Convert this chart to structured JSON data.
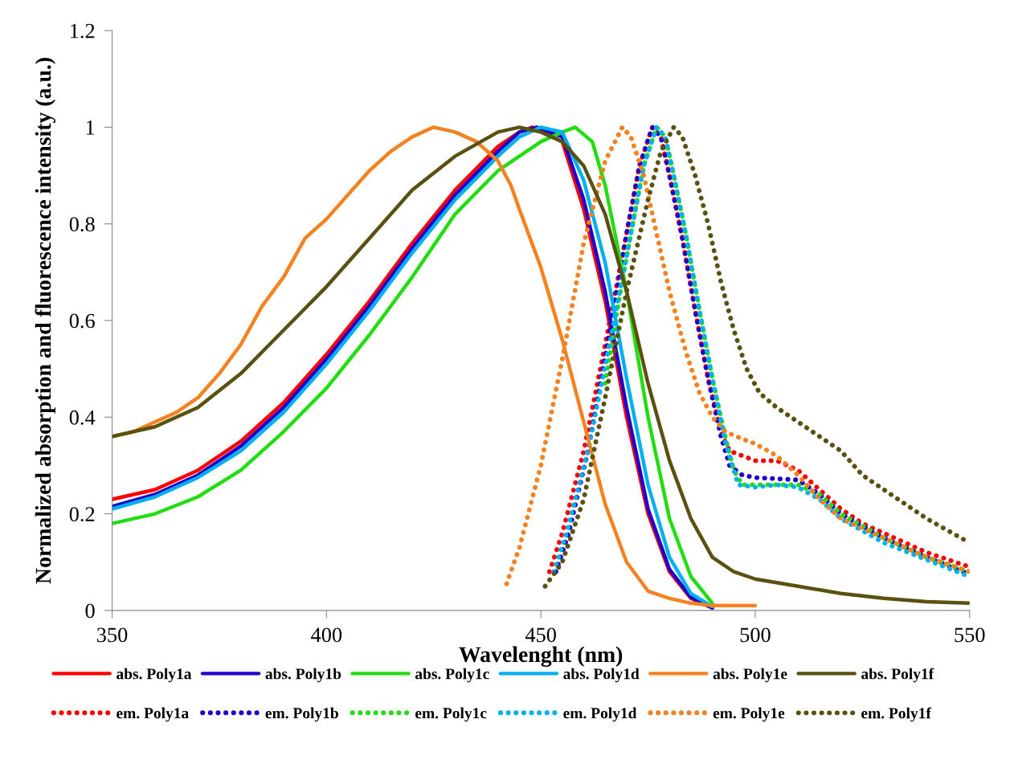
{
  "chart_data": {
    "type": "line",
    "xlabel": "Wavelenght (nm)",
    "ylabel": "Normalized absorption and fluorescence intensity (a.u.)",
    "xlim": [
      350,
      550
    ],
    "xticks": [
      350,
      400,
      450,
      500,
      550
    ],
    "ylim": [
      0,
      1.2
    ],
    "yticks": [
      0,
      0.2,
      0.4,
      0.6,
      0.8,
      1,
      1.2
    ],
    "grid": false,
    "legend": "bottom",
    "series": [
      {
        "name": "abs. Poly1a",
        "color": "#ff0000",
        "line_style": "solid",
        "x": [
          350,
          360,
          370,
          380,
          390,
          400,
          410,
          420,
          430,
          440,
          445,
          448,
          455,
          460,
          465,
          470,
          475,
          480,
          485,
          490
        ],
        "values": [
          0.23,
          0.25,
          0.29,
          0.35,
          0.43,
          0.53,
          0.64,
          0.76,
          0.87,
          0.96,
          0.99,
          1.0,
          0.97,
          0.83,
          0.64,
          0.4,
          0.2,
          0.08,
          0.025,
          0.005
        ]
      },
      {
        "name": "em. Poly1a",
        "color": "#ff0000",
        "line_style": "dotted",
        "x": [
          452,
          455,
          460,
          465,
          470,
          473,
          476,
          478,
          480,
          483,
          486,
          489,
          492,
          494,
          497,
          500,
          505,
          510,
          515,
          520,
          525,
          530,
          540,
          550
        ],
        "values": [
          0.08,
          0.16,
          0.33,
          0.55,
          0.78,
          0.92,
          1.0,
          0.98,
          0.9,
          0.77,
          0.62,
          0.48,
          0.37,
          0.33,
          0.32,
          0.31,
          0.31,
          0.29,
          0.25,
          0.21,
          0.18,
          0.16,
          0.12,
          0.09
        ]
      },
      {
        "name": "abs. Poly1b",
        "color": "#2200cc",
        "line_style": "solid",
        "x": [
          350,
          360,
          370,
          380,
          390,
          400,
          410,
          420,
          430,
          440,
          445,
          449,
          455,
          460,
          465,
          470,
          475,
          480,
          485,
          490
        ],
        "values": [
          0.215,
          0.24,
          0.28,
          0.34,
          0.42,
          0.52,
          0.63,
          0.75,
          0.86,
          0.95,
          0.99,
          1.0,
          0.98,
          0.85,
          0.66,
          0.42,
          0.21,
          0.085,
          0.027,
          0.005
        ]
      },
      {
        "name": "em. Poly1b",
        "color": "#2200cc",
        "line_style": "dotted",
        "x": [
          453.5,
          456.5,
          461,
          465.5,
          470,
          473,
          476,
          478,
          480,
          483,
          486,
          489,
          492,
          494,
          497,
          500,
          510,
          515,
          520,
          530,
          540,
          550
        ],
        "values": [
          0.08,
          0.16,
          0.33,
          0.55,
          0.78,
          0.92,
          1.0,
          0.98,
          0.9,
          0.77,
          0.62,
          0.48,
          0.36,
          0.3,
          0.28,
          0.275,
          0.27,
          0.24,
          0.2,
          0.15,
          0.11,
          0.075
        ]
      },
      {
        "name": "abs. Poly1c",
        "color": "#22dd11",
        "line_style": "solid",
        "x": [
          350,
          360,
          370,
          380,
          390,
          400,
          410,
          420,
          430,
          440,
          450,
          455,
          458,
          462,
          465,
          470,
          475,
          480,
          485,
          490
        ],
        "values": [
          0.18,
          0.2,
          0.235,
          0.29,
          0.37,
          0.46,
          0.57,
          0.69,
          0.82,
          0.91,
          0.97,
          0.99,
          1.0,
          0.97,
          0.88,
          0.66,
          0.4,
          0.19,
          0.07,
          0.015
        ]
      },
      {
        "name": "em. Poly1c",
        "color": "#22dd11",
        "line_style": "dotted",
        "x": [
          465,
          468,
          471,
          474,
          477,
          479,
          481,
          484,
          487,
          490,
          493,
          495,
          497,
          500,
          510,
          515,
          520,
          530,
          540,
          550
        ],
        "values": [
          0.47,
          0.63,
          0.78,
          0.92,
          1.0,
          0.98,
          0.9,
          0.77,
          0.62,
          0.48,
          0.36,
          0.29,
          0.26,
          0.26,
          0.26,
          0.24,
          0.2,
          0.15,
          0.11,
          0.08
        ]
      },
      {
        "name": "abs. Poly1d",
        "color": "#00b0f0",
        "line_style": "solid",
        "x": [
          350,
          360,
          370,
          380,
          390,
          400,
          410,
          420,
          430,
          440,
          445,
          450,
          455,
          460,
          465,
          470,
          475,
          480,
          485,
          490
        ],
        "values": [
          0.21,
          0.235,
          0.275,
          0.33,
          0.41,
          0.51,
          0.62,
          0.74,
          0.85,
          0.94,
          0.98,
          1.0,
          0.99,
          0.89,
          0.72,
          0.48,
          0.26,
          0.11,
          0.035,
          0.008
        ]
      },
      {
        "name": "em. Poly1d",
        "color": "#00b0f0",
        "line_style": "dotted",
        "x": [
          453,
          456,
          461,
          466,
          471,
          474,
          477,
          479,
          481,
          484,
          487,
          490,
          493,
          496,
          500,
          505,
          510,
          515,
          520,
          530,
          540,
          550
        ],
        "values": [
          0.08,
          0.16,
          0.33,
          0.55,
          0.78,
          0.92,
          1.0,
          0.98,
          0.9,
          0.77,
          0.62,
          0.48,
          0.35,
          0.26,
          0.255,
          0.26,
          0.255,
          0.23,
          0.19,
          0.14,
          0.105,
          0.07
        ]
      },
      {
        "name": "abs. Poly1e",
        "color": "#f58220",
        "line_style": "solid",
        "x": [
          350,
          355,
          360,
          365,
          370,
          375,
          380,
          385,
          390,
          395,
          400,
          405,
          410,
          415,
          420,
          425,
          430,
          435,
          440,
          443,
          445,
          450,
          455,
          460,
          465,
          470,
          475,
          480,
          485,
          490,
          495,
          500
        ],
        "values": [
          0.36,
          0.37,
          0.39,
          0.41,
          0.44,
          0.49,
          0.55,
          0.63,
          0.69,
          0.77,
          0.81,
          0.86,
          0.91,
          0.95,
          0.98,
          1.0,
          0.99,
          0.97,
          0.93,
          0.88,
          0.83,
          0.71,
          0.56,
          0.39,
          0.22,
          0.1,
          0.04,
          0.025,
          0.015,
          0.01,
          0.01,
          0.01
        ]
      },
      {
        "name": "em. Poly1e",
        "color": "#f58220",
        "line_style": "dotted",
        "x": [
          442,
          445,
          450,
          455,
          460,
          465,
          469,
          471,
          474,
          477,
          480,
          484,
          487,
          490,
          493,
          497,
          500,
          505,
          510,
          515,
          520,
          530,
          540,
          550
        ],
        "values": [
          0.055,
          0.13,
          0.3,
          0.52,
          0.76,
          0.93,
          1.0,
          0.98,
          0.9,
          0.78,
          0.66,
          0.53,
          0.45,
          0.4,
          0.37,
          0.355,
          0.345,
          0.32,
          0.28,
          0.23,
          0.19,
          0.15,
          0.11,
          0.08
        ]
      },
      {
        "name": "abs. Poly1f",
        "color": "#5a5010",
        "line_style": "solid",
        "x": [
          350,
          360,
          370,
          380,
          390,
          400,
          410,
          420,
          430,
          440,
          445,
          450,
          455,
          460,
          465,
          470,
          475,
          480,
          485,
          490,
          495,
          500,
          510,
          520,
          530,
          540,
          550
        ],
        "values": [
          0.36,
          0.38,
          0.42,
          0.49,
          0.58,
          0.67,
          0.77,
          0.87,
          0.94,
          0.99,
          1.0,
          0.99,
          0.97,
          0.92,
          0.82,
          0.66,
          0.47,
          0.31,
          0.19,
          0.11,
          0.08,
          0.065,
          0.05,
          0.035,
          0.025,
          0.018,
          0.015
        ]
      },
      {
        "name": "em. Poly1f",
        "color": "#5a5010",
        "line_style": "dotted",
        "x": [
          451,
          455,
          460,
          465,
          470,
          475,
          478,
          481,
          483,
          486,
          489,
          492,
          495,
          498,
          501,
          505,
          510,
          515,
          520,
          525,
          530,
          540,
          550
        ],
        "values": [
          0.05,
          0.1,
          0.23,
          0.44,
          0.66,
          0.85,
          0.95,
          1.0,
          0.98,
          0.9,
          0.8,
          0.68,
          0.58,
          0.5,
          0.45,
          0.42,
          0.39,
          0.36,
          0.33,
          0.28,
          0.25,
          0.19,
          0.14
        ]
      }
    ]
  }
}
